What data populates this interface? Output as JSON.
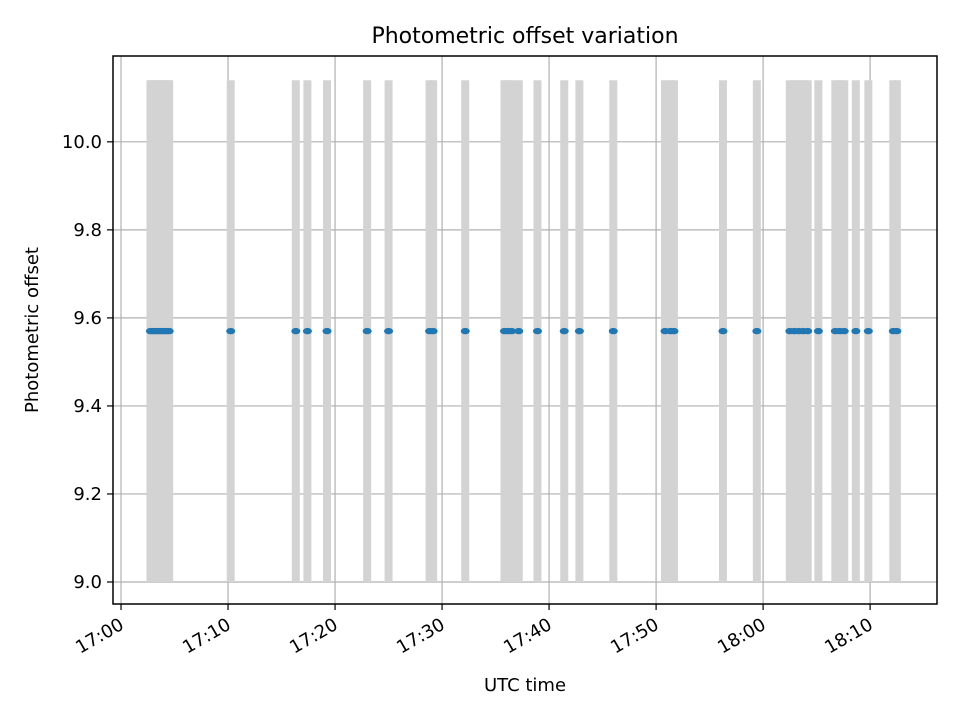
{
  "chart_data": {
    "type": "scatter",
    "title": "Photometric offset variation",
    "xlabel": "UTC time",
    "ylabel": "Photometric offset",
    "x_axis_type": "time",
    "xlim": [
      "16:59:15",
      "18:16:15"
    ],
    "ylim": [
      8.95,
      10.195
    ],
    "xticks": [
      "17:00",
      "17:10",
      "17:20",
      "17:30",
      "17:40",
      "17:50",
      "18:00",
      "18:10"
    ],
    "yticks": [
      9.0,
      9.2,
      9.4,
      9.6,
      9.8,
      10.0
    ],
    "ytick_labels": [
      "9.0",
      "9.2",
      "9.4",
      "9.6",
      "9.8",
      "10.0"
    ],
    "grid": true,
    "legend": "none",
    "marker_color": "#1f77b4",
    "error_bar_color": "#d3d3d3",
    "series": [
      {
        "x": [
          "17:02:45",
          "17:03:00",
          "17:03:15",
          "17:03:30",
          "17:03:45",
          "17:04:00",
          "17:04:15",
          "17:04:30",
          "17:10:15",
          "17:16:20",
          "17:17:25",
          "17:19:15",
          "17:23:00",
          "17:25:00",
          "17:28:50",
          "17:29:10",
          "17:32:10",
          "17:35:50",
          "17:36:10",
          "17:36:30",
          "17:37:10",
          "17:38:55",
          "17:41:25",
          "17:42:50",
          "17:46:00",
          "17:50:50",
          "17:51:20",
          "17:51:40",
          "17:56:15",
          "17:59:25",
          "18:02:30",
          "18:02:55",
          "18:03:20",
          "18:03:45",
          "18:04:10",
          "18:05:10",
          "18:06:45",
          "18:07:10",
          "18:07:35",
          "18:08:40",
          "18:09:50",
          "18:12:10",
          "18:12:30"
        ],
        "y": [
          9.57,
          9.57,
          9.57,
          9.57,
          9.57,
          9.57,
          9.57,
          9.57,
          9.57,
          9.57,
          9.57,
          9.57,
          9.57,
          9.57,
          9.57,
          9.57,
          9.57,
          9.57,
          9.57,
          9.57,
          9.57,
          9.57,
          9.57,
          9.57,
          9.57,
          9.57,
          9.57,
          9.57,
          9.57,
          9.57,
          9.57,
          9.57,
          9.57,
          9.57,
          9.57,
          9.57,
          9.57,
          9.57,
          9.57,
          9.57,
          9.57,
          9.57,
          9.57
        ],
        "yerr": 0.57
      }
    ]
  }
}
